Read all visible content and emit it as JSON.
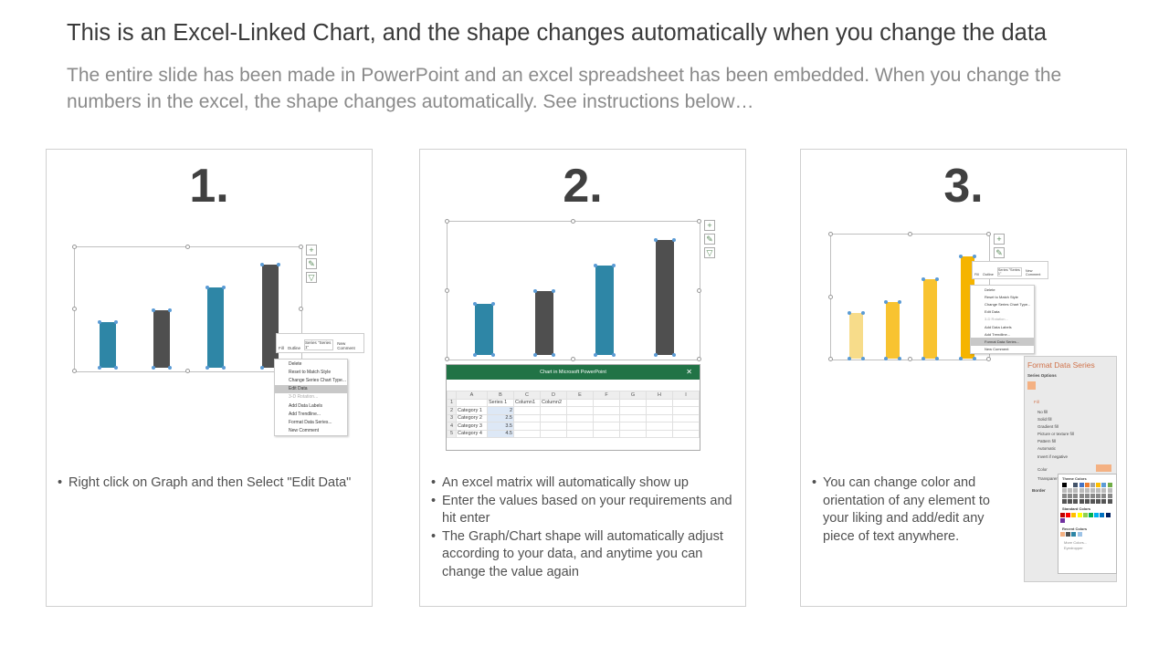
{
  "title": "This is an Excel-Linked Chart, and the shape changes automatically when you change the data",
  "subtitle": "The entire slide has been made in PowerPoint and an excel spreadsheet has been embedded. When you change the numbers in the excel, the shape changes automatically. See instructions below…",
  "chart_data": {
    "type": "bar",
    "categories": [
      "Category 1",
      "Category 2",
      "Category 3",
      "Category 4"
    ],
    "series": [
      {
        "name": "Series 1",
        "values": [
          2,
          2.5,
          3.5,
          4.5
        ]
      }
    ],
    "ylim": [
      0,
      5
    ]
  },
  "colors": {
    "teal": "#2e86a6",
    "gray": "#4f4f4f",
    "yellow_light": "#f7dc8a",
    "yellow": "#f8c330",
    "yellow_dark": "#f5b400",
    "excel_green": "#217346",
    "pane_accent": "#d0724a"
  },
  "panels": [
    {
      "number": "1.",
      "bullets": [
        "Right click on Graph and then Select \"Edit Data\""
      ]
    },
    {
      "number": "2.",
      "bullets": [
        "An excel matrix will automatically show up",
        "Enter the values based on your requirements and hit enter",
        "The Graph/Chart shape will automatically adjust according to your data, and anytime you can change the value again"
      ]
    },
    {
      "number": "3.",
      "bullets": [
        "You can change color and orientation of any element to your liking and add/edit any piece of text anywhere."
      ]
    }
  ],
  "mini_toolbar": {
    "fill": "Fill",
    "outline": "Outline",
    "series_select": "Series \"Series 1\"",
    "new_comment": "New Comment"
  },
  "context_menu": [
    "Delete",
    "Reset to Match Style",
    "Change Series Chart Type...",
    "Edit Data",
    "3-D Rotation...",
    "Add Data Labels",
    "Add Trendline...",
    "Format Data Series...",
    "New Comment"
  ],
  "excel": {
    "title": "Chart in Microsoft PowerPoint",
    "columns": [
      "",
      "A",
      "B",
      "C",
      "D",
      "E",
      "F",
      "G",
      "H",
      "I"
    ],
    "rows": [
      [
        "1",
        "",
        "Series 1",
        "Column1",
        "Column2"
      ],
      [
        "2",
        "Category 1",
        "2"
      ],
      [
        "3",
        "Category 2",
        "2.5"
      ],
      [
        "4",
        "Category 3",
        "3.5"
      ],
      [
        "5",
        "Category 4",
        "4.5"
      ]
    ]
  },
  "format_pane": {
    "title": "Format Data Series",
    "series_options": "Series Options",
    "fill": "Fill",
    "options": [
      "No fill",
      "Solid fill",
      "Gradient fill",
      "Picture or texture fill",
      "Pattern fill",
      "Automatic",
      "Invert if negative"
    ],
    "color": "Color",
    "transparency": "Transparency",
    "border": "Border",
    "theme_colors": "Theme Colors",
    "standard_colors": "Standard Colors",
    "recent_colors": "Recent Colors",
    "more_colors": "More Colors...",
    "eyedropper": "Eyedropper"
  }
}
